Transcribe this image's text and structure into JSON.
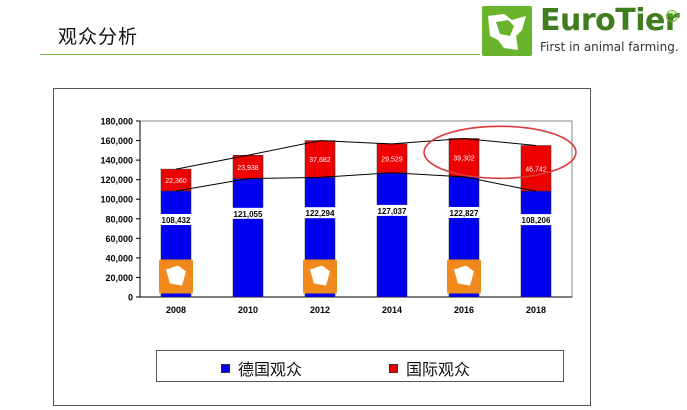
{
  "slide": {
    "title": "观众分析"
  },
  "logo": {
    "word": "EuroTier",
    "tagline": "First in animal farming.",
    "reg": "®"
  },
  "colors": {
    "domestic": "#0000ee",
    "international": "#ee0000",
    "accent_green": "#6ab42d",
    "highlight": "#d83a3a"
  },
  "chart_data": {
    "type": "bar",
    "stacked": true,
    "categories": [
      "2008",
      "2010",
      "2012",
      "2014",
      "2016",
      "2018"
    ],
    "series": [
      {
        "name": "德国观众",
        "values": [
          108432,
          121055,
          122294,
          127037,
          122827,
          108206
        ],
        "labels": [
          "108,432",
          "121,055",
          "122,294",
          "127,037",
          "122,827",
          "108,206"
        ]
      },
      {
        "name": "国际观众",
        "values": [
          22360,
          23938,
          37682,
          29529,
          39302,
          46742
        ],
        "labels": [
          "22,360",
          "23,938",
          "37,682",
          "29,529",
          "39,302",
          "46,742"
        ]
      }
    ],
    "ylim": [
      0,
      180000
    ],
    "yticks": [
      "0",
      "20,000",
      "40,000",
      "60,000",
      "80,000",
      "100,000",
      "120,000",
      "140,000",
      "160,000",
      "180,000"
    ],
    "legend_position": "bottom",
    "grid": false
  }
}
